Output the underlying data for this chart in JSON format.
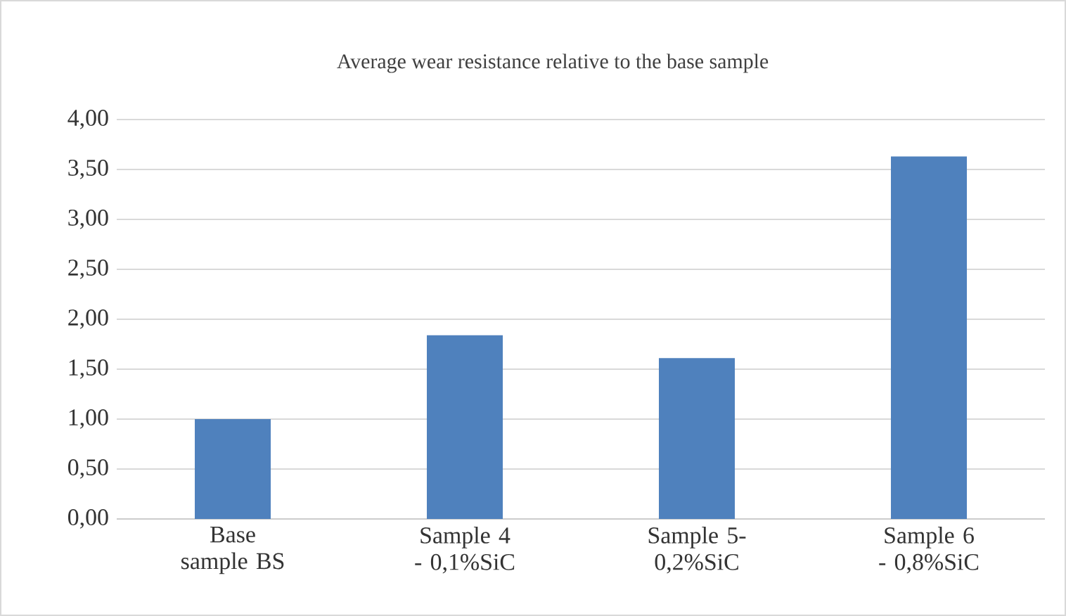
{
  "chart_data": {
    "type": "bar",
    "title": "Average wear resistance relative to the base sample",
    "categories": [
      "Base sample BS",
      "Sample 4 - 0,1%SiC",
      "Sample 5- 0,2%SiC",
      "Sample 6 - 0,8%SiC"
    ],
    "values": [
      1.0,
      1.84,
      1.61,
      3.63
    ],
    "color": "#4f81bd",
    "ylim": [
      0,
      4
    ],
    "yticks": [
      {
        "value": 0,
        "label": "0,00"
      },
      {
        "value": 0.5,
        "label": "0,50"
      },
      {
        "value": 1,
        "label": "1,00"
      },
      {
        "value": 1.5,
        "label": "1,50"
      },
      {
        "value": 2,
        "label": "2,00"
      },
      {
        "value": 2.5,
        "label": "2,50"
      },
      {
        "value": 3,
        "label": "3,00"
      },
      {
        "value": 3.5,
        "label": "3,50"
      },
      {
        "value": 4,
        "label": "4,00"
      }
    ],
    "grid": "y"
  }
}
